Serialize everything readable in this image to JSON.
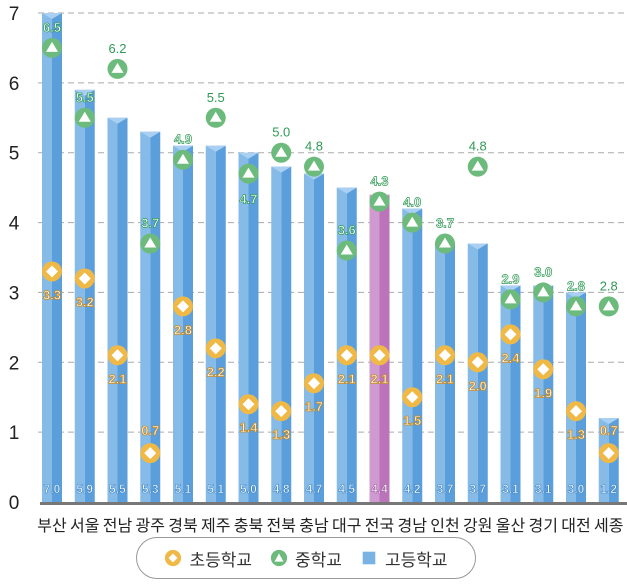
{
  "chart_data": {
    "type": "bar",
    "title": "",
    "xlabel": "",
    "ylabel": "",
    "ylim": [
      0,
      7
    ],
    "yticks": [
      0,
      1,
      2,
      3,
      4,
      5,
      6,
      7
    ],
    "grid": true,
    "legend_position": "bottom-center",
    "categories": [
      "부산",
      "서울",
      "전남",
      "광주",
      "경북",
      "제주",
      "충북",
      "전북",
      "충남",
      "대구",
      "전국",
      "경남",
      "인천",
      "강원",
      "울산",
      "경기",
      "대전",
      "세종"
    ],
    "highlight_category": "전국",
    "series": [
      {
        "name": "고등학교",
        "kind": "bar",
        "color": "#5fa3dc",
        "highlight_color": "#c07bbf",
        "values": [
          7.0,
          5.9,
          5.5,
          5.3,
          5.1,
          5.1,
          5.0,
          4.8,
          4.7,
          4.5,
          4.4,
          4.2,
          3.7,
          3.7,
          3.1,
          3.1,
          3.0,
          1.2
        ]
      },
      {
        "name": "중학교",
        "kind": "marker-triangle",
        "color": "#6dbb7c",
        "values": [
          6.5,
          5.5,
          6.2,
          3.7,
          4.9,
          5.5,
          4.7,
          5.0,
          4.8,
          3.6,
          4.3,
          4.0,
          3.7,
          4.8,
          2.9,
          3.0,
          2.8,
          2.8
        ]
      },
      {
        "name": "초등학교",
        "kind": "marker-diamond",
        "color": "#f0b845",
        "values": [
          3.3,
          3.2,
          2.1,
          0.7,
          2.8,
          2.2,
          1.4,
          1.3,
          1.7,
          2.1,
          2.1,
          1.5,
          2.1,
          2.0,
          2.4,
          1.9,
          1.3,
          0.7
        ]
      }
    ]
  },
  "legend": {
    "items": [
      {
        "label": "초등학교"
      },
      {
        "label": "중학교"
      },
      {
        "label": "고등학교"
      }
    ]
  }
}
